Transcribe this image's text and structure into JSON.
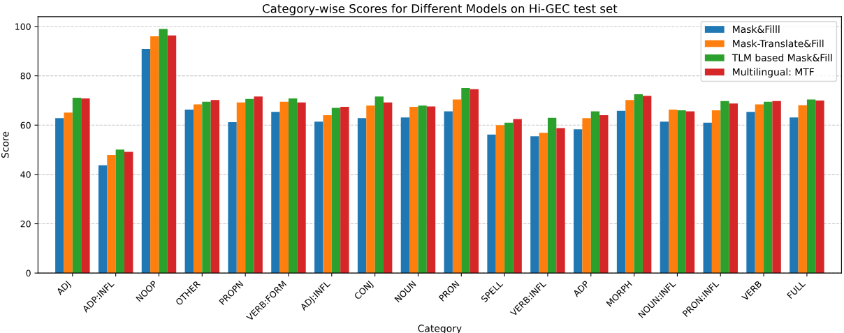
{
  "chart_data": {
    "type": "bar",
    "title": "Category-wise Scores for Different Models on Hi-GEC test set",
    "xlabel": "Category",
    "ylabel": "Score",
    "categories": [
      "ADJ",
      "ADP:INFL",
      "NOOP",
      "OTHER",
      "PROPN",
      "VERB:FORM",
      "ADJ:INFL",
      "CONJ",
      "NOUN",
      "PRON",
      "SPELL",
      "VERB:INFL",
      "ADP",
      "MORPH",
      "NOUN:INFL",
      "PRON:INFL",
      "VERB",
      "FULL"
    ],
    "series": [
      {
        "name": "Mask&Filll",
        "color": "#1f77b4",
        "values": [
          62.8,
          43.7,
          90.9,
          66.3,
          61.2,
          65.4,
          61.4,
          62.8,
          63.1,
          65.6,
          56.2,
          55.5,
          58.3,
          65.8,
          61.4,
          61.0,
          65.4,
          63.1
        ]
      },
      {
        "name": "Mask-Translate&Fill",
        "color": "#ff7f0e",
        "values": [
          65.1,
          47.9,
          96.0,
          68.4,
          69.2,
          69.5,
          64.0,
          67.9,
          67.4,
          70.4,
          60.0,
          56.9,
          62.8,
          70.2,
          66.3,
          66.0,
          68.4,
          68.1
        ]
      },
      {
        "name": "TLM based Mask&Fill",
        "color": "#2ca02c",
        "values": [
          71.1,
          50.1,
          99.0,
          69.5,
          70.6,
          70.8,
          67.0,
          71.6,
          67.9,
          75.1,
          61.0,
          63.0,
          65.6,
          72.5,
          66.0,
          69.8,
          69.5,
          70.4
        ]
      },
      {
        "name": "Multilingual: MTF",
        "color": "#d62728",
        "values": [
          70.8,
          49.2,
          96.4,
          70.2,
          71.6,
          69.2,
          67.4,
          69.2,
          67.6,
          74.6,
          62.5,
          58.8,
          64.0,
          71.9,
          65.6,
          68.8,
          69.8,
          70.0
        ]
      }
    ],
    "ylim": [
      0,
      104
    ],
    "yticks": [
      0,
      20,
      40,
      60,
      80,
      100
    ],
    "grid": "y",
    "legend": "top right"
  }
}
